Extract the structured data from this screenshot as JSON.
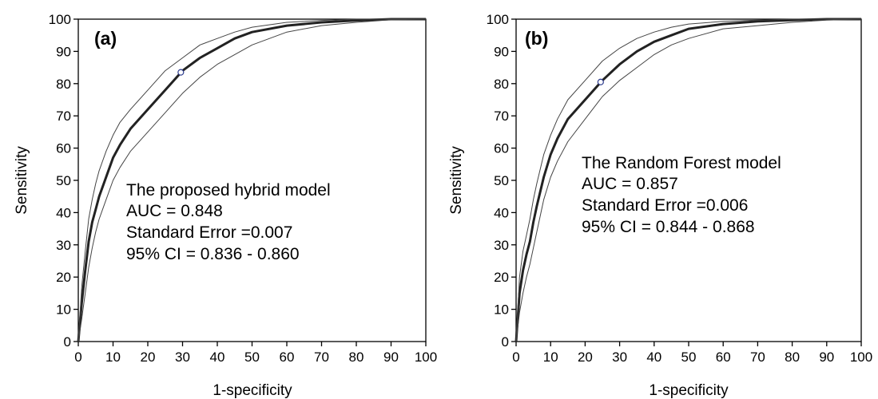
{
  "chart_data": [
    {
      "type": "line",
      "panel_label": "(a)",
      "xlabel": "1-specificity",
      "ylabel": "Sensitivity",
      "xlim": [
        0,
        100
      ],
      "ylim": [
        0,
        100
      ],
      "xticks": [
        0,
        10,
        20,
        30,
        40,
        50,
        60,
        70,
        80,
        90,
        100
      ],
      "yticks": [
        0,
        10,
        20,
        30,
        40,
        50,
        60,
        70,
        80,
        90,
        100
      ],
      "annotation": [
        "The proposed hybrid model",
        "AUC = 0.848",
        "Standard Error =0.007",
        "95% CI = 0.836 - 0.860"
      ],
      "series": [
        {
          "role": "roc",
          "x": [
            0,
            1,
            2,
            3,
            4,
            5,
            6,
            8,
            10,
            12,
            15,
            20,
            25,
            30,
            35,
            40,
            45,
            50,
            60,
            70,
            80,
            90,
            100
          ],
          "y": [
            0,
            12,
            22,
            31,
            37,
            41,
            45,
            51,
            57,
            61,
            66,
            72,
            78,
            84,
            88,
            91,
            94,
            96,
            98,
            99,
            99.6,
            100,
            100
          ]
        },
        {
          "role": "ci_upper",
          "x": [
            0,
            1,
            2,
            3,
            4,
            5,
            6,
            8,
            10,
            12,
            15,
            20,
            25,
            30,
            35,
            40,
            45,
            50,
            60,
            70,
            80,
            90,
            100
          ],
          "y": [
            0,
            17,
            28,
            38,
            44,
            49,
            53,
            59,
            64,
            68,
            72,
            78,
            84,
            88,
            92,
            94,
            96,
            97.5,
            99,
            99.6,
            100,
            100,
            100
          ]
        },
        {
          "role": "ci_lower",
          "x": [
            0,
            1,
            2,
            3,
            4,
            5,
            6,
            8,
            10,
            12,
            15,
            20,
            25,
            30,
            35,
            40,
            45,
            50,
            60,
            70,
            80,
            90,
            100
          ],
          "y": [
            0,
            7,
            15,
            23,
            29,
            34,
            38,
            44,
            50,
            54,
            59,
            65,
            71,
            77,
            82,
            86,
            89,
            92,
            96,
            98,
            99,
            99.8,
            100
          ]
        }
      ],
      "cutoff_point": {
        "x": 29.5,
        "y": 83.5
      }
    },
    {
      "type": "line",
      "panel_label": "(b)",
      "xlabel": "1-specificity",
      "ylabel": "Sensitivity",
      "xlim": [
        0,
        100
      ],
      "ylim": [
        0,
        100
      ],
      "xticks": [
        0,
        10,
        20,
        30,
        40,
        50,
        60,
        70,
        80,
        90,
        100
      ],
      "yticks": [
        0,
        10,
        20,
        30,
        40,
        50,
        60,
        70,
        80,
        90,
        100
      ],
      "annotation": [
        "The Random Forest model",
        "AUC = 0.857",
        "Standard Error =0.006",
        "95% CI = 0.844 - 0.868"
      ],
      "series": [
        {
          "role": "roc",
          "x": [
            0,
            1,
            2,
            3,
            4,
            5,
            6,
            8,
            10,
            12,
            15,
            20,
            25,
            30,
            35,
            40,
            45,
            50,
            60,
            70,
            80,
            90,
            100
          ],
          "y": [
            0,
            15,
            22,
            27,
            31,
            37,
            42,
            51,
            58,
            63,
            69,
            75,
            81,
            86,
            90,
            93,
            95,
            97,
            98.5,
            99.3,
            99.7,
            100,
            100
          ]
        },
        {
          "role": "ci_upper",
          "x": [
            0,
            1,
            2,
            3,
            4,
            5,
            6,
            8,
            10,
            12,
            15,
            20,
            25,
            30,
            35,
            40,
            45,
            50,
            60,
            70,
            80,
            90,
            100
          ],
          "y": [
            0,
            20,
            28,
            33,
            38,
            44,
            49,
            58,
            64,
            69,
            75,
            81,
            87,
            91,
            94,
            96,
            97.5,
            98.5,
            99.3,
            99.7,
            100,
            100,
            100
          ]
        },
        {
          "role": "ci_lower",
          "x": [
            0,
            1,
            2,
            3,
            4,
            5,
            6,
            8,
            10,
            12,
            15,
            20,
            25,
            30,
            35,
            40,
            45,
            50,
            60,
            70,
            80,
            90,
            100
          ],
          "y": [
            0,
            9,
            15,
            20,
            24,
            29,
            34,
            44,
            51,
            56,
            62,
            69,
            76,
            81,
            85,
            89,
            92,
            94,
            97,
            98,
            99,
            99.7,
            100
          ]
        }
      ],
      "cutoff_point": {
        "x": 24.5,
        "y": 80.5
      }
    }
  ],
  "colors": {
    "roc": "#222222",
    "ci": "#444444",
    "marker_edge": "#2b3a8c",
    "axis": "#000000"
  }
}
